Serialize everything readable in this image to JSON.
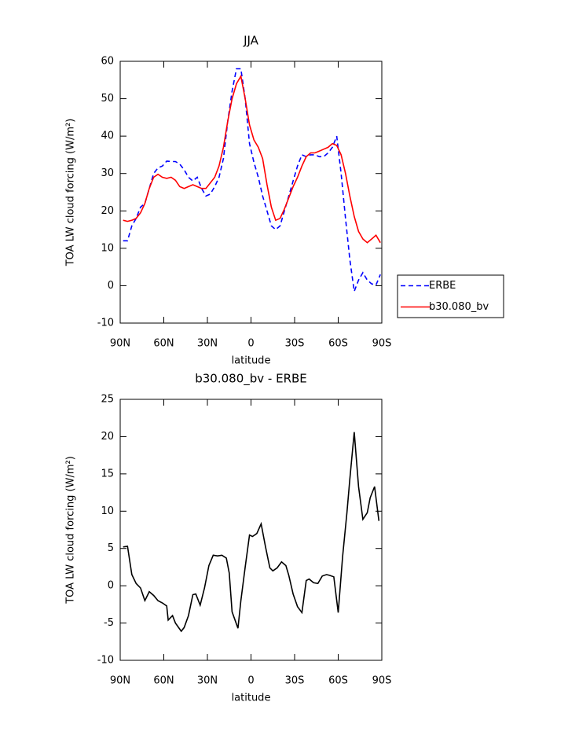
{
  "chart_data": [
    {
      "type": "line",
      "title": "JJA",
      "xlabel": "latitude",
      "ylabel": "TOA LW cloud forcing (W/m²)",
      "x": [
        -88,
        -85,
        -82,
        -79,
        -76,
        -73,
        -70,
        -67,
        -64,
        -61,
        -58,
        -55,
        -52,
        -49,
        -46,
        -43,
        -40,
        -37,
        -34,
        -31,
        -28,
        -25,
        -22,
        -19,
        -16,
        -13,
        -10,
        -7,
        -4,
        -1,
        2,
        5,
        8,
        11,
        14,
        17,
        20,
        23,
        26,
        29,
        32,
        35,
        38,
        41,
        44,
        47,
        50,
        53,
        56,
        59,
        62,
        65,
        68,
        71,
        74,
        77,
        80,
        83,
        86,
        89
      ],
      "series": [
        {
          "name": "ERBE",
          "color": "#0000ff",
          "style": "dashed",
          "values": [
            12,
            12,
            16,
            18,
            21,
            22,
            26,
            30,
            31.5,
            32,
            33.3,
            33.2,
            33.2,
            32.5,
            31,
            29,
            28,
            29,
            26,
            24,
            24.5,
            26.5,
            29,
            34,
            44,
            52,
            58,
            58,
            50,
            38,
            33,
            29,
            24,
            20,
            16,
            15,
            16,
            20,
            24,
            28,
            32,
            35,
            34.5,
            35,
            35,
            34.5,
            34.5,
            35.5,
            37,
            40,
            30,
            18,
            7,
            -1.5,
            1.5,
            3.5,
            1.5,
            0.5,
            0.2,
            3
          ]
        },
        {
          "name": "b30.080_bv",
          "color": "#ff0000",
          "style": "solid",
          "values": [
            17.5,
            17.2,
            17.5,
            18,
            19.5,
            22,
            26,
            29,
            29.8,
            29,
            28.7,
            29,
            28.2,
            26.5,
            26,
            26.5,
            27,
            26.5,
            26,
            26,
            27.5,
            29,
            32,
            37,
            44,
            50,
            54,
            56,
            50,
            43,
            39,
            37,
            34,
            27,
            21,
            17.5,
            18,
            20.5,
            23.5,
            26.5,
            29,
            32,
            34.5,
            35.5,
            35.5,
            36,
            36.5,
            37,
            38,
            37.5,
            35,
            30,
            24,
            18.5,
            14.5,
            12.5,
            11.5,
            12.5,
            13.5,
            11.5
          ]
        }
      ],
      "xlim": [
        -90,
        90
      ],
      "xticks": [
        {
          "value": -90,
          "label": "90N"
        },
        {
          "value": -60,
          "label": "60N"
        },
        {
          "value": -30,
          "label": "30N"
        },
        0,
        {
          "value": 30,
          "label": "30S"
        },
        {
          "value": 60,
          "label": "60S"
        },
        {
          "value": 90,
          "label": "90S"
        }
      ],
      "ylim": [
        -10,
        60
      ],
      "yticks": [
        -10,
        0,
        10,
        20,
        30,
        40,
        50,
        60
      ],
      "legend": "right"
    },
    {
      "type": "line",
      "title": "b30.080_bv - ERBE",
      "xlabel": "latitude",
      "ylabel": "TOA LW cloud forcing (W/m²)",
      "x": [
        -88,
        -85,
        -82,
        -79,
        -76,
        -73,
        -70,
        -67,
        -64,
        -61,
        -58,
        -57,
        -54,
        -52,
        -48,
        -46,
        -43,
        -40,
        -38,
        -35,
        -32,
        -29,
        -26,
        -23,
        -20,
        -17,
        -15,
        -13,
        -9,
        -7,
        -4,
        -1,
        1,
        4,
        7,
        10,
        13,
        15,
        18,
        21,
        24,
        26,
        29,
        32,
        35,
        38,
        40,
        43,
        46,
        49,
        52,
        54,
        57,
        60,
        63,
        66,
        68,
        71,
        74,
        77,
        80,
        82,
        85,
        88
      ],
      "series": [
        {
          "color": "#000000",
          "style": "solid",
          "values": [
            5.2,
            5.3,
            1.5,
            0.3,
            -0.3,
            -2,
            -0.8,
            -1.3,
            -2,
            -2.3,
            -2.7,
            -4.6,
            -4,
            -5,
            -6.1,
            -5.6,
            -4,
            -1.2,
            -1.1,
            -2.6,
            -0.3,
            2.7,
            4.1,
            4,
            4.1,
            3.7,
            1.7,
            -3.5,
            -5.7,
            -2,
            2.5,
            6.8,
            6.6,
            7,
            8.3,
            5.2,
            2.4,
            2,
            2.4,
            3.2,
            2.7,
            1.4,
            -1.1,
            -2.8,
            -3.6,
            0.7,
            0.9,
            0.4,
            0.3,
            1.3,
            1.5,
            1.4,
            1.2,
            -3.6,
            3.9,
            9.8,
            14.3,
            20.6,
            13.3,
            8.9,
            9.8,
            11.8,
            13.3,
            8.7
          ]
        }
      ],
      "xlim": [
        -90,
        90
      ],
      "xticks": [
        {
          "value": -90,
          "label": "90N"
        },
        {
          "value": -60,
          "label": "60N"
        },
        {
          "value": -30,
          "label": "30N"
        },
        0,
        {
          "value": 30,
          "label": "30S"
        },
        {
          "value": 60,
          "label": "60S"
        },
        {
          "value": 90,
          "label": "90S"
        }
      ],
      "ylim": [
        -10,
        25
      ],
      "yticks": [
        -10,
        -5,
        0,
        5,
        10,
        15,
        20,
        25
      ]
    }
  ]
}
